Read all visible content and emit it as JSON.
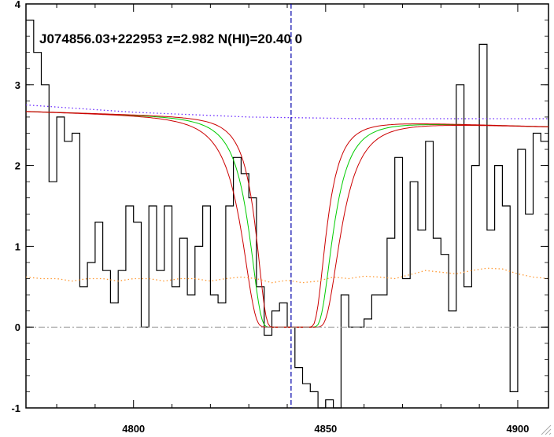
{
  "chart_data": {
    "type": "line",
    "title": "J074856.03+222953 z=2.982 N(HI)=20.40 0",
    "xlabel": "",
    "ylabel": "",
    "xlim": [
      4772,
      4908
    ],
    "ylim": [
      -1,
      4
    ],
    "xticks": [
      4800,
      4850,
      4900
    ],
    "yticks": [
      -1,
      0,
      1,
      2,
      3,
      4
    ],
    "line_center": 4841,
    "grid": false,
    "series": [
      {
        "role": "flux",
        "style": "step",
        "color": "#000000",
        "x": [
          4772,
          4774,
          4776,
          4778,
          4780,
          4782,
          4784,
          4786,
          4788,
          4790,
          4792,
          4794,
          4796,
          4798,
          4800,
          4802,
          4804,
          4806,
          4808,
          4810,
          4812,
          4814,
          4816,
          4818,
          4820,
          4822,
          4824,
          4826,
          4828,
          4830,
          4832,
          4834,
          4836,
          4838,
          4840,
          4842,
          4844,
          4846,
          4848,
          4850,
          4852,
          4854,
          4856,
          4858,
          4860,
          4862,
          4864,
          4866,
          4868,
          4870,
          4872,
          4874,
          4876,
          4878,
          4880,
          4882,
          4884,
          4886,
          4888,
          4890,
          4892,
          4894,
          4896,
          4898,
          4900,
          4902,
          4904,
          4906
        ],
        "y": [
          3.8,
          3.4,
          3.0,
          1.8,
          2.6,
          2.3,
          2.4,
          0.5,
          0.8,
          1.3,
          0.7,
          0.3,
          0.7,
          1.5,
          1.3,
          0.0,
          1.5,
          0.7,
          1.5,
          0.5,
          1.1,
          0.4,
          1.0,
          1.5,
          0.4,
          0.3,
          1.5,
          2.1,
          1.9,
          1.6,
          0.5,
          -0.1,
          0.2,
          0.3,
          0.0,
          -0.5,
          -0.7,
          -0.8,
          -1.0,
          -0.9,
          -1.0,
          0.4,
          0.0,
          0.0,
          0.1,
          0.4,
          0.4,
          1.1,
          2.1,
          0.6,
          1.8,
          1.2,
          2.3,
          1.1,
          0.9,
          0.2,
          3.0,
          0.5,
          2.0,
          3.5,
          1.2,
          2.0,
          1.5,
          -0.8,
          2.2,
          1.4,
          2.4,
          2.3
        ]
      },
      {
        "role": "model",
        "style": "line",
        "color": "#00cc00",
        "n_hi": 20.4,
        "continuum": [
          2.67,
          2.48
        ],
        "center": 4841,
        "width": 9.8
      },
      {
        "role": "model upper",
        "style": "line",
        "color": "#cc0000",
        "n_hi": 20.5,
        "continuum": [
          2.67,
          2.48
        ],
        "center": 4841,
        "width": 11.6
      },
      {
        "role": "model lower",
        "style": "line",
        "color": "#cc0000",
        "n_hi": 20.3,
        "continuum": [
          2.67,
          2.48
        ],
        "center": 4841,
        "width": 8.2
      },
      {
        "role": "continuum",
        "style": "dotted",
        "color": "#6b2bff",
        "x": [
          4772,
          4800,
          4830,
          4860,
          4908
        ],
        "y": [
          2.75,
          2.66,
          2.6,
          2.58,
          2.58
        ]
      },
      {
        "role": "error",
        "style": "dotted",
        "color": "#ff9933",
        "x": [
          4772,
          4776,
          4780,
          4784,
          4788,
          4792,
          4796,
          4800,
          4804,
          4808,
          4812,
          4816,
          4820,
          4824,
          4828,
          4832,
          4836,
          4840,
          4844,
          4848,
          4852,
          4856,
          4860,
          4864,
          4868,
          4872,
          4876,
          4880,
          4884,
          4888,
          4892,
          4896,
          4900,
          4904,
          4908
        ],
        "y": [
          0.62,
          0.6,
          0.6,
          0.57,
          0.6,
          0.6,
          0.57,
          0.6,
          0.6,
          0.57,
          0.6,
          0.6,
          0.57,
          0.6,
          0.62,
          0.6,
          0.55,
          0.58,
          0.55,
          0.57,
          0.62,
          0.6,
          0.63,
          0.62,
          0.6,
          0.65,
          0.7,
          0.68,
          0.66,
          0.7,
          0.73,
          0.72,
          0.66,
          0.62,
          0.6
        ]
      },
      {
        "role": "zero",
        "style": "dashdot",
        "color": "#999999",
        "x": [
          4772,
          4908
        ],
        "y": [
          0,
          0
        ]
      }
    ]
  }
}
